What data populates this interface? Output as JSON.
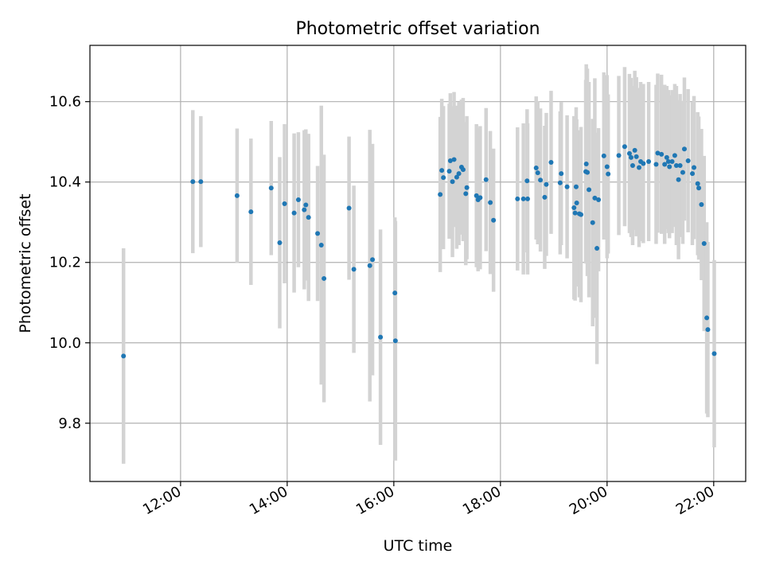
{
  "chart_data": {
    "type": "scatter",
    "title": "Photometric offset variation",
    "xlabel": "UTC time",
    "ylabel": "Photometric offset",
    "x_unit": "UTC hour",
    "xlim": [
      10.3,
      22.6
    ],
    "ylim": [
      9.655,
      10.74
    ],
    "x_ticks": [
      12,
      14,
      16,
      18,
      20,
      22
    ],
    "x_tick_labels": [
      "12:00",
      "14:00",
      "16:00",
      "18:00",
      "20:00",
      "22:00"
    ],
    "y_ticks": [
      9.8,
      10.0,
      10.2,
      10.4,
      10.6
    ],
    "y_tick_labels": [
      "9.8",
      "10.0",
      "10.2",
      "10.4",
      "10.6"
    ],
    "grid": true,
    "colors": {
      "point": "#1f77b4",
      "errorbar": "#d3d3d3",
      "grid": "#b0b0b0"
    },
    "series": [
      {
        "points": [
          [
            10.93,
            9.967,
            0.268
          ],
          [
            12.23,
            10.401,
            0.178
          ],
          [
            12.38,
            10.401,
            0.163
          ],
          [
            13.06,
            10.366,
            0.167
          ],
          [
            13.32,
            10.326,
            0.182
          ],
          [
            13.7,
            10.385,
            0.167
          ],
          [
            13.86,
            10.249,
            0.213
          ],
          [
            13.95,
            10.346,
            0.198
          ],
          [
            14.13,
            10.323,
            0.198
          ],
          [
            14.21,
            10.356,
            0.168
          ],
          [
            14.32,
            10.331,
            0.198
          ],
          [
            14.35,
            10.343,
            0.188
          ],
          [
            14.4,
            10.312,
            0.208
          ],
          [
            14.57,
            10.272,
            0.168
          ],
          [
            14.64,
            10.243,
            0.347
          ],
          [
            14.69,
            10.16,
            0.308
          ],
          [
            15.16,
            10.335,
            0.178
          ],
          [
            15.25,
            10.183,
            0.208
          ],
          [
            15.55,
            10.192,
            0.338
          ],
          [
            15.6,
            10.207,
            0.288
          ],
          [
            15.75,
            10.014,
            0.268
          ],
          [
            16.02,
            10.124,
            0.188
          ],
          [
            16.03,
            10.005,
            0.298
          ],
          [
            16.87,
            10.369,
            0.193
          ],
          [
            16.9,
            10.429,
            0.178
          ],
          [
            16.93,
            10.411,
            0.178
          ],
          [
            17.04,
            10.427,
            0.168
          ],
          [
            17.06,
            10.453,
            0.168
          ],
          [
            17.1,
            10.401,
            0.188
          ],
          [
            17.13,
            10.456,
            0.168
          ],
          [
            17.18,
            10.412,
            0.178
          ],
          [
            17.22,
            10.421,
            0.178
          ],
          [
            17.27,
            10.437,
            0.168
          ],
          [
            17.3,
            10.431,
            0.178
          ],
          [
            17.35,
            10.371,
            0.178
          ],
          [
            17.37,
            10.386,
            0.178
          ],
          [
            17.55,
            10.366,
            0.178
          ],
          [
            17.58,
            10.356,
            0.178
          ],
          [
            17.62,
            10.361,
            0.178
          ],
          [
            17.73,
            10.406,
            0.178
          ],
          [
            17.81,
            10.349,
            0.178
          ],
          [
            17.87,
            10.305,
            0.178
          ],
          [
            18.32,
            10.358,
            0.178
          ],
          [
            18.43,
            10.358,
            0.188
          ],
          [
            18.5,
            10.403,
            0.178
          ],
          [
            18.51,
            10.358,
            0.188
          ],
          [
            18.67,
            10.435,
            0.178
          ],
          [
            18.7,
            10.423,
            0.178
          ],
          [
            18.75,
            10.405,
            0.178
          ],
          [
            18.83,
            10.362,
            0.178
          ],
          [
            18.86,
            10.394,
            0.178
          ],
          [
            18.95,
            10.449,
            0.178
          ],
          [
            19.12,
            10.398,
            0.178
          ],
          [
            19.14,
            10.421,
            0.178
          ],
          [
            19.25,
            10.388,
            0.178
          ],
          [
            19.38,
            10.336,
            0.228
          ],
          [
            19.4,
            10.323,
            0.218
          ],
          [
            19.42,
            10.388,
            0.198
          ],
          [
            19.43,
            10.348,
            0.208
          ],
          [
            19.48,
            10.321,
            0.208
          ],
          [
            19.51,
            10.319,
            0.218
          ],
          [
            19.6,
            10.426,
            0.228
          ],
          [
            19.61,
            10.445,
            0.248
          ],
          [
            19.63,
            10.424,
            0.258
          ],
          [
            19.66,
            10.381,
            0.268
          ],
          [
            19.73,
            10.299,
            0.258
          ],
          [
            19.77,
            10.36,
            0.298
          ],
          [
            19.81,
            10.235,
            0.288
          ],
          [
            19.84,
            10.356,
            0.178
          ],
          [
            19.94,
            10.465,
            0.208
          ],
          [
            20.0,
            10.438,
            0.228
          ],
          [
            20.02,
            10.42,
            0.198
          ],
          [
            20.22,
            10.466,
            0.198
          ],
          [
            20.33,
            10.488,
            0.198
          ],
          [
            20.42,
            10.471,
            0.198
          ],
          [
            20.45,
            10.461,
            0.198
          ],
          [
            20.48,
            10.441,
            0.198
          ],
          [
            20.52,
            10.479,
            0.198
          ],
          [
            20.55,
            10.463,
            0.198
          ],
          [
            20.6,
            10.436,
            0.198
          ],
          [
            20.63,
            10.451,
            0.198
          ],
          [
            20.68,
            10.446,
            0.198
          ],
          [
            20.78,
            10.451,
            0.198
          ],
          [
            20.92,
            10.444,
            0.198
          ],
          [
            20.95,
            10.472,
            0.198
          ],
          [
            21.02,
            10.469,
            0.198
          ],
          [
            21.08,
            10.444,
            0.198
          ],
          [
            21.12,
            10.461,
            0.178
          ],
          [
            21.15,
            10.451,
            0.178
          ],
          [
            21.17,
            10.438,
            0.178
          ],
          [
            21.22,
            10.451,
            0.178
          ],
          [
            21.27,
            10.466,
            0.178
          ],
          [
            21.3,
            10.441,
            0.198
          ],
          [
            21.34,
            10.406,
            0.198
          ],
          [
            21.37,
            10.441,
            0.178
          ],
          [
            21.42,
            10.424,
            0.178
          ],
          [
            21.45,
            10.482,
            0.178
          ],
          [
            21.52,
            10.453,
            0.178
          ],
          [
            21.6,
            10.421,
            0.178
          ],
          [
            21.63,
            10.436,
            0.178
          ],
          [
            21.7,
            10.396,
            0.178
          ],
          [
            21.72,
            10.385,
            0.178
          ],
          [
            21.77,
            10.344,
            0.188
          ],
          [
            21.82,
            10.247,
            0.218
          ],
          [
            21.87,
            10.062,
            0.238
          ],
          [
            21.89,
            10.033,
            0.218
          ],
          [
            22.01,
            9.973,
            0.233
          ]
        ]
      }
    ]
  }
}
